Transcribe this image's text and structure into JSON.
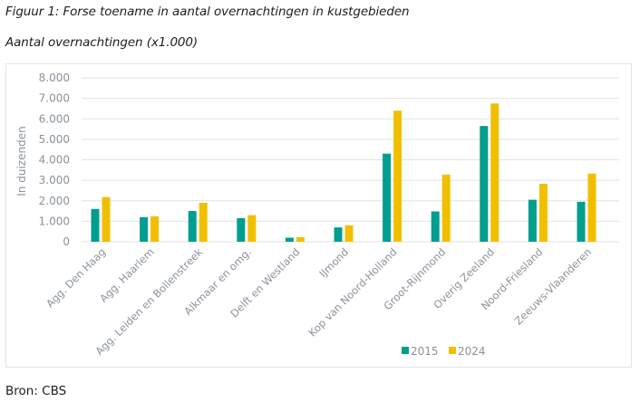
{
  "figure": {
    "title": "Figuur 1: Forse toename in aantal overnachtingen in kustgebieden",
    "subtitle": "Aantal overnachtingen (x1.000)",
    "source": "Bron: CBS"
  },
  "chart_data": {
    "type": "bar",
    "title": "Figuur 1: Forse toename in aantal overnachtingen in kustgebieden",
    "subtitle": "Aantal overnachtingen (x1.000)",
    "xlabel": "",
    "ylabel": "In duizenden",
    "ylim": [
      0,
      8000
    ],
    "yticks": [
      0,
      1000,
      2000,
      3000,
      4000,
      5000,
      6000,
      7000,
      8000
    ],
    "ytick_labels": [
      "0",
      "1.000",
      "2.000",
      "3.000",
      "4.000",
      "5.000",
      "6.000",
      "7.000",
      "8.000"
    ],
    "grid": true,
    "legend_position": "bottom-center",
    "categories": [
      "Agg. Den Haag",
      "Agg. Haarlem",
      "Agg. Leiden en Bollenstreek",
      "Alkmaar en omg.",
      "Delft en Westland",
      "IJmond",
      "Kop van Noord-Holland",
      "Groot-Rijnmond",
      "Overig Zeeland",
      "Noord-Friesland",
      "Zeeuws-Vlaanderen"
    ],
    "series": [
      {
        "name": "2015",
        "color": "#009e8e",
        "values": [
          1600,
          1200,
          1500,
          1150,
          200,
          700,
          4300,
          1480,
          5650,
          2050,
          1950
        ]
      },
      {
        "name": "2024",
        "color": "#f2bf00",
        "values": [
          2180,
          1240,
          1900,
          1300,
          220,
          800,
          6400,
          3280,
          6750,
          2830,
          3330
        ]
      }
    ]
  }
}
